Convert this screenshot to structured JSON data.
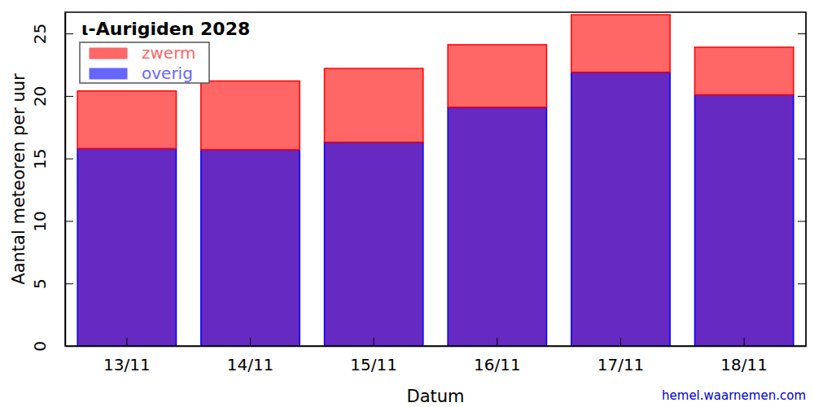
{
  "chart_data": {
    "type": "bar",
    "title": "ι-Aurigiden 2028",
    "x_label": "Datum",
    "y_label": "Aantal meteoren per uur",
    "annotation": "hemel.waarnemen.com",
    "categories": [
      "13/11",
      "14/11",
      "15/11",
      "16/11",
      "17/11",
      "18/11"
    ],
    "series": [
      {
        "name": "zwerm",
        "color": "#ff0000",
        "values": [
          4.6,
          5.5,
          5.9,
          5.0,
          4.6,
          3.8
        ]
      },
      {
        "name": "overig",
        "color": "#0000ff",
        "values": [
          15.8,
          15.7,
          16.3,
          19.1,
          21.9,
          20.1
        ]
      }
    ],
    "stacked": true,
    "legend": "upper left",
    "ylim": [
      0,
      26.7
    ],
    "yticks": [
      0,
      5,
      10,
      15,
      20,
      25
    ]
  }
}
